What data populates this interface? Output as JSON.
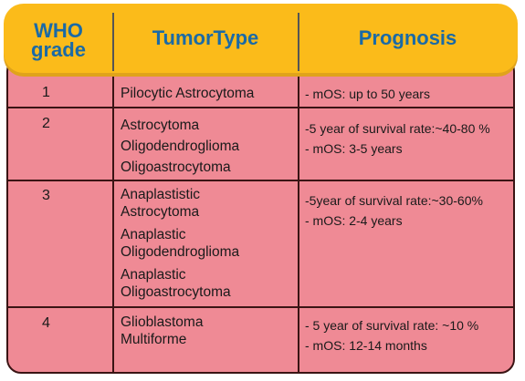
{
  "header": {
    "grade_line1": "WHO",
    "grade_line2": "grade",
    "tumor_type": "TumorType",
    "prognosis": "Prognosis"
  },
  "rows": [
    {
      "grade": "1",
      "types": [
        "Pilocytic Astrocytoma"
      ],
      "prognosis": [
        "- mOS: up to 50 years"
      ]
    },
    {
      "grade": "2",
      "types": [
        "Astrocytoma",
        "Oligodendroglioma",
        "Oligoastrocytoma"
      ],
      "prognosis": [
        "-5 year of survival rate:~40-80 %",
        "- mOS: 3-5 years"
      ]
    },
    {
      "grade": "3",
      "types": [
        "Anaplastistic",
        "Astrocytoma",
        "Anaplastic",
        "Oligodendroglioma",
        "Anaplastic",
        "Oligoastrocytoma"
      ],
      "prognosis": [
        "-5year of survival rate:~30-60%",
        "- mOS: 2-4 years"
      ]
    },
    {
      "grade": "4",
      "types": [
        "Glioblastoma",
        "Multiforme"
      ],
      "prognosis": [
        "- 5 year of survival rate: ~10 %",
        "- mOS: 12-14 months"
      ]
    }
  ],
  "colors": {
    "header_bg": "#fbbb1a",
    "header_text": "#1a6aa6",
    "body_bg": "#ef8a95",
    "border": "#3a1414"
  }
}
